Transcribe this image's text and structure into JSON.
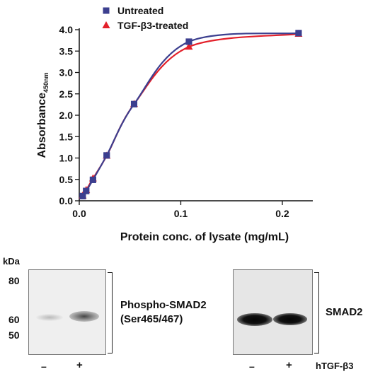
{
  "chart_data": {
    "type": "line",
    "xlabel": "Protein conc. of lysate (mg/mL)",
    "ylabel": "Absorbance",
    "ylabel_subscript": "450nm",
    "xlim": [
      0,
      0.23
    ],
    "ylim": [
      0,
      4.0
    ],
    "x_ticks": [
      "0.0",
      "0.1",
      "0.2"
    ],
    "y_ticks": [
      "0.0",
      "0.5",
      "1.0",
      "1.5",
      "2.0",
      "2.5",
      "3.0",
      "3.5",
      "4.0"
    ],
    "legend_position": "top-left",
    "series": [
      {
        "name": "Untreated",
        "color": "#3c3f8f",
        "marker": "square",
        "points": [
          [
            0.0034,
            0.11
          ],
          [
            0.0068,
            0.23
          ],
          [
            0.0135,
            0.49
          ],
          [
            0.027,
            1.06
          ],
          [
            0.054,
            2.26
          ],
          [
            0.108,
            3.72
          ],
          [
            0.216,
            3.92
          ]
        ]
      },
      {
        "name": "TGF-β3-treated",
        "color": "#e3202a",
        "marker": "triangle",
        "points": [
          [
            0.0034,
            0.12
          ],
          [
            0.0068,
            0.25
          ],
          [
            0.0135,
            0.52
          ],
          [
            0.027,
            1.05
          ],
          [
            0.054,
            2.26
          ],
          [
            0.108,
            3.6
          ],
          [
            0.216,
            3.9
          ]
        ]
      }
    ]
  },
  "blot": {
    "unit_label": "kDa",
    "markers": [
      "80",
      "60",
      "50"
    ],
    "left_panel": {
      "label_line1": "Phospho-SMAD2",
      "label_line2": "(Ser465/467)"
    },
    "right_panel": {
      "label": "SMAD2"
    },
    "lanes": [
      "–",
      "+"
    ],
    "treatment_label": "hTGF-β3"
  }
}
